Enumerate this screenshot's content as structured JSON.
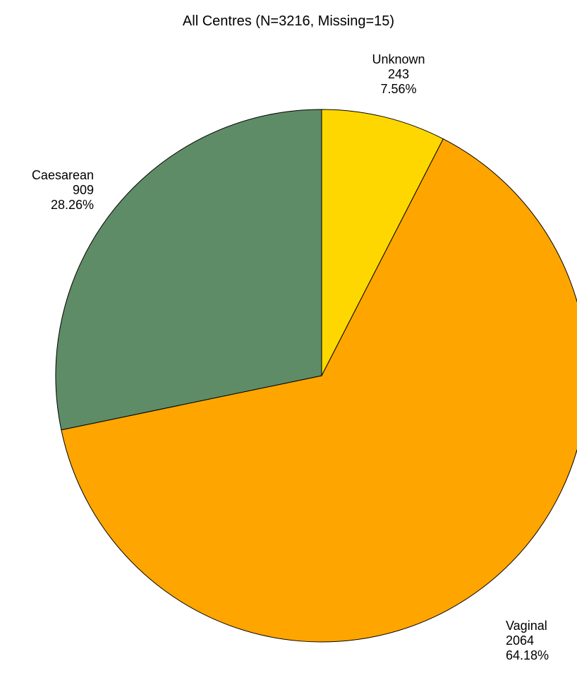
{
  "chart_data": {
    "type": "pie",
    "title": "All Centres  (N=3216, Missing=15)",
    "slices": [
      {
        "label": "Unknown",
        "count": "243",
        "percent_text": "7.56%",
        "value": 243,
        "color": "#FFD700"
      },
      {
        "label": "Vaginal",
        "count": "2064",
        "percent_text": "64.18%",
        "value": 2064,
        "color": "#FFA500"
      },
      {
        "label": "Caesarean",
        "count": "909",
        "percent_text": "28.26%",
        "value": 909,
        "color": "#5E8C66"
      }
    ],
    "start_angle": "12 o'clock",
    "direction": "clockwise"
  }
}
